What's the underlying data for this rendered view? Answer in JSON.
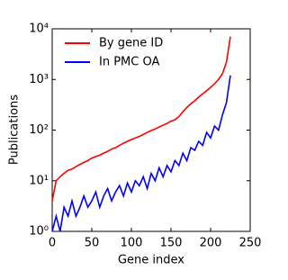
{
  "chart_data": {
    "type": "line",
    "x_label": "Gene index",
    "y_label": "Publications",
    "x": [
      0,
      5,
      10,
      15,
      20,
      25,
      30,
      35,
      40,
      45,
      50,
      55,
      60,
      65,
      70,
      75,
      80,
      85,
      90,
      95,
      100,
      105,
      110,
      115,
      120,
      125,
      130,
      135,
      140,
      145,
      150,
      155,
      160,
      165,
      170,
      175,
      180,
      185,
      190,
      195,
      200,
      205,
      210,
      215,
      220,
      225
    ],
    "series": [
      {
        "name": "By gene ID",
        "color": "#ff0000",
        "values": [
          4,
          10,
          12,
          14,
          16,
          17,
          19,
          21,
          23,
          25,
          28,
          30,
          32,
          35,
          38,
          42,
          45,
          50,
          55,
          60,
          65,
          70,
          75,
          82,
          90,
          98,
          105,
          115,
          125,
          135,
          150,
          160,
          185,
          230,
          280,
          330,
          380,
          450,
          520,
          600,
          700,
          820,
          1000,
          1300,
          2200,
          7000
        ]
      },
      {
        "name": "In PMC OA",
        "color": "#0000ff",
        "values": [
          1,
          2,
          1,
          3,
          2,
          4,
          2,
          3,
          5,
          3,
          4,
          6,
          3,
          5,
          7,
          4,
          6,
          8,
          5,
          9,
          6,
          10,
          8,
          12,
          7,
          14,
          10,
          18,
          12,
          20,
          15,
          25,
          20,
          35,
          25,
          45,
          40,
          60,
          50,
          90,
          70,
          120,
          100,
          200,
          350,
          1200
        ]
      }
    ],
    "xlim": [
      0,
      250
    ],
    "xticks": [
      0,
      50,
      100,
      150,
      200,
      250
    ],
    "ylim": [
      1,
      10000
    ],
    "yscale": "log",
    "yticks": [
      {
        "value": 1,
        "label": "10⁰"
      },
      {
        "value": 10,
        "label": "10¹"
      },
      {
        "value": 100,
        "label": "10²"
      },
      {
        "value": 1000,
        "label": "10³"
      },
      {
        "value": 10000,
        "label": "10⁴"
      }
    ],
    "legend": "upper left"
  }
}
